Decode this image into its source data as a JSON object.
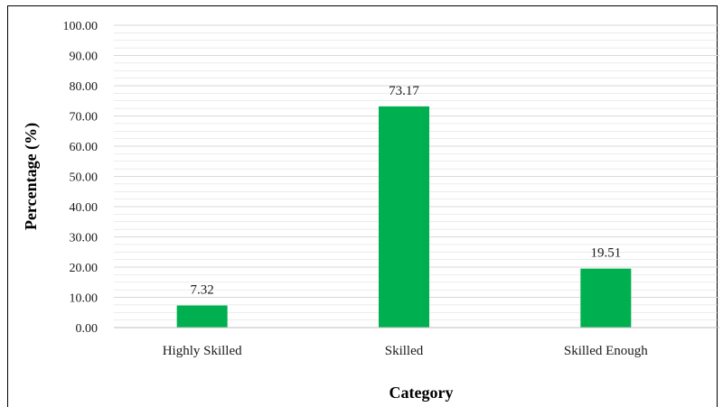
{
  "chart_data": {
    "type": "bar",
    "title": "",
    "xlabel": "Category",
    "ylabel": "Percentage (%)",
    "categories": [
      "Highly Skilled",
      "Skilled",
      "Skilled Enough"
    ],
    "values": [
      7.32,
      73.17,
      19.51
    ],
    "value_labels": [
      "7.32",
      "73.17",
      "19.51"
    ],
    "ylim": [
      0,
      100
    ],
    "y_ticks": [
      "0.00",
      "10.00",
      "20.00",
      "30.00",
      "40.00",
      "50.00",
      "60.00",
      "70.00",
      "80.00",
      "90.00",
      "100.00"
    ],
    "grid": true,
    "legend": "none",
    "colors": {
      "bar": "#00b050",
      "grid": "#d9d9d9"
    }
  }
}
